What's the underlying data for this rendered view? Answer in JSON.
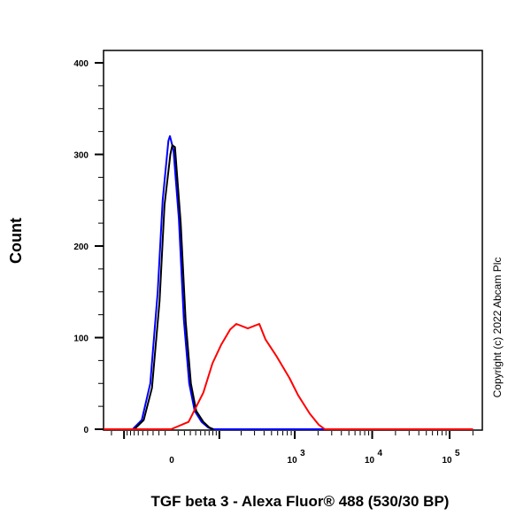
{
  "chart_data": {
    "type": "line",
    "title": "",
    "xlabel": "TGF beta 3 - Alexa Fluor® 488 (530/30 BP)",
    "ylabel": "Count",
    "xscale": "biexponential",
    "xlim": [
      -195,
      200000
    ],
    "ylim": [
      0,
      420
    ],
    "yticks": [
      0,
      100,
      200,
      300,
      400
    ],
    "xtick_labels": [
      {
        "value": 0,
        "base": "0",
        "exp": ""
      },
      {
        "value": 1000,
        "base": "10",
        "exp": "3"
      },
      {
        "value": 10000,
        "base": "10",
        "exp": "4"
      },
      {
        "value": 100000,
        "base": "10",
        "exp": "5"
      }
    ],
    "grid": false,
    "legend": "none",
    "annotation": "Copyright (c) 2022 Abcam Plc",
    "series": [
      {
        "color": "#0000ff",
        "points": [
          [
            -74,
            0
          ],
          [
            -52,
            10
          ],
          [
            -35,
            50
          ],
          [
            -22,
            150
          ],
          [
            -14,
            250
          ],
          [
            -5,
            315
          ],
          [
            -2.7,
            320
          ],
          [
            2.7,
            305
          ],
          [
            11,
            230
          ],
          [
            19,
            120
          ],
          [
            28,
            50
          ],
          [
            38,
            20
          ],
          [
            52,
            8
          ],
          [
            67,
            2
          ],
          [
            79,
            0
          ],
          [
            200000,
            0
          ]
        ]
      },
      {
        "color": "#000000",
        "points": [
          [
            -70,
            0
          ],
          [
            -48,
            10
          ],
          [
            -32,
            45
          ],
          [
            -19,
            140
          ],
          [
            -11,
            245
          ],
          [
            -2,
            300
          ],
          [
            1,
            310
          ],
          [
            5,
            308
          ],
          [
            14,
            225
          ],
          [
            22,
            118
          ],
          [
            31,
            50
          ],
          [
            41,
            20
          ],
          [
            56,
            8
          ],
          [
            70,
            2
          ],
          [
            82,
            0
          ]
        ]
      },
      {
        "color": "#ff0000",
        "points": [
          [
            -195,
            0
          ],
          [
            -1,
            0
          ],
          [
            27,
            8
          ],
          [
            56,
            40
          ],
          [
            79,
            72
          ],
          [
            106,
            92
          ],
          [
            142,
            109
          ],
          [
            172,
            115
          ],
          [
            245,
            110
          ],
          [
            347,
            115
          ],
          [
            417,
            98
          ],
          [
            588,
            79
          ],
          [
            852,
            56
          ],
          [
            1107,
            37
          ],
          [
            1560,
            17
          ],
          [
            2034,
            5
          ],
          [
            2441,
            0
          ],
          [
            200000,
            0
          ]
        ]
      }
    ]
  }
}
